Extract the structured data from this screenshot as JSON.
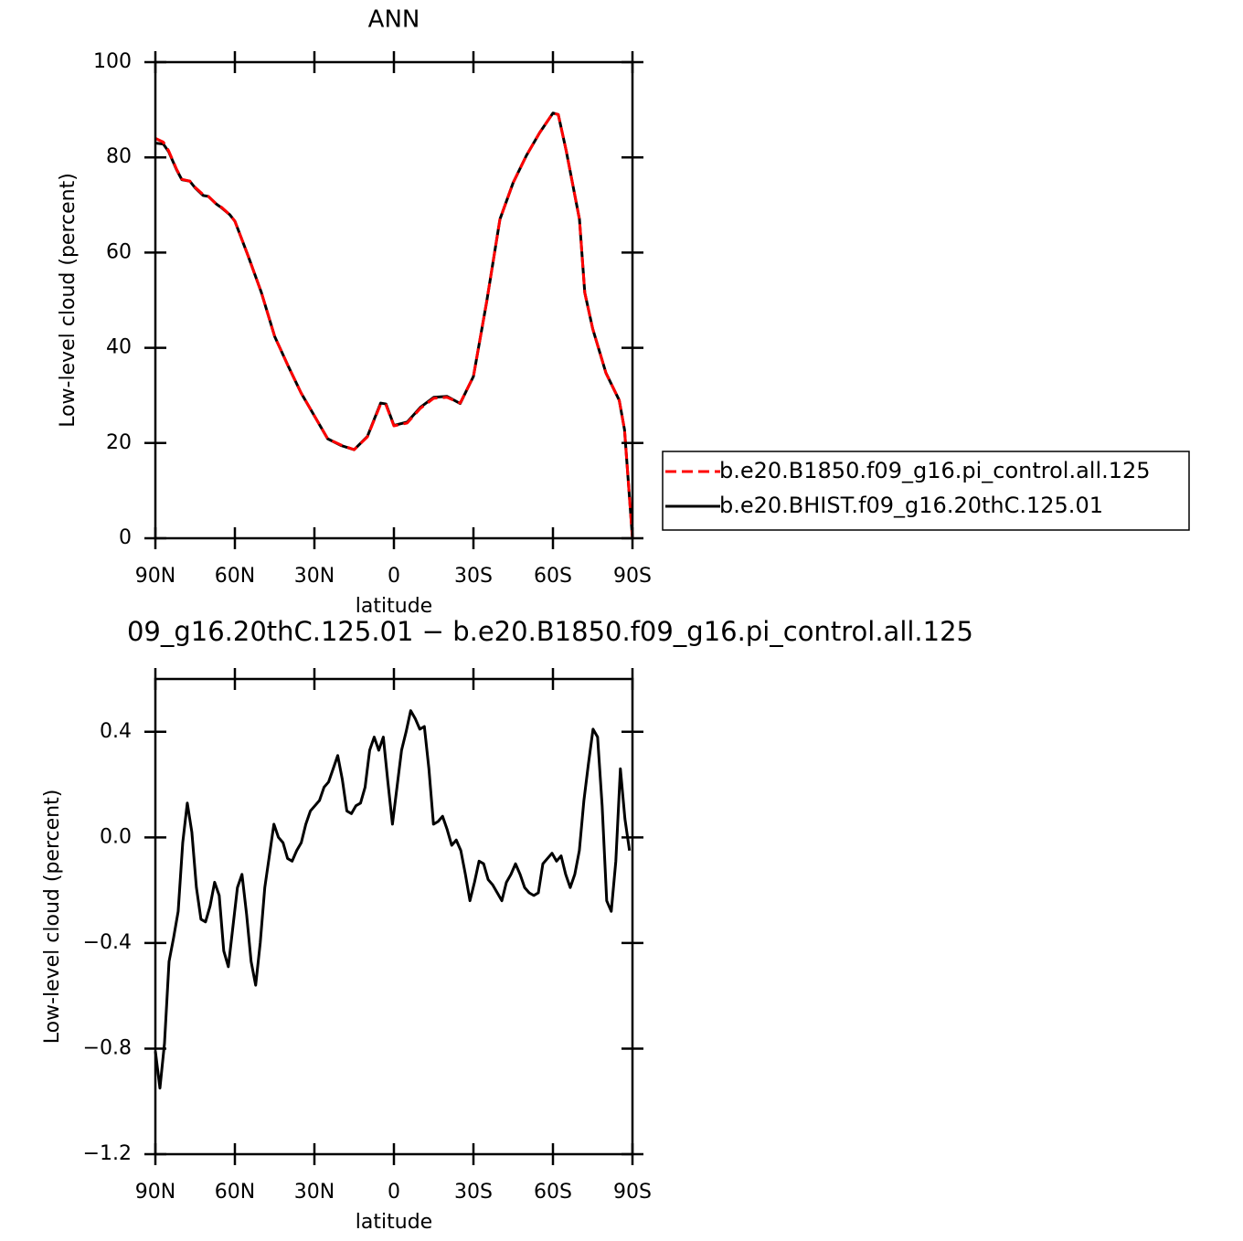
{
  "chart_data": [
    {
      "type": "line",
      "title": "ANN",
      "xlabel": "latitude",
      "ylabel": "Low-level cloud (percent)",
      "x": [
        90,
        87,
        85,
        82,
        80,
        77,
        75,
        72,
        70,
        67,
        65,
        62,
        60,
        55,
        50,
        45,
        40,
        35,
        30,
        25,
        20,
        15,
        10,
        5,
        3,
        0,
        -5,
        -10,
        -15,
        -20,
        -25,
        -30,
        -35,
        -40,
        -45,
        -50,
        -55,
        -60,
        -62,
        -65,
        -70,
        -72,
        -75,
        -80,
        -85,
        -87,
        -90
      ],
      "series": [
        {
          "name": "b.e20.B1850.f09_g16.pi_control.all.125",
          "color": "#ff0000",
          "dashed": true,
          "values": [
            84,
            83.2,
            81.4,
            77.5,
            75.4,
            75,
            73.7,
            72.2,
            71.8,
            70.2,
            69.5,
            68,
            66.6,
            59.3,
            51.6,
            42.4,
            36.3,
            30.5,
            25.7,
            20.9,
            19.6,
            18.6,
            21.3,
            28.2,
            28,
            23.6,
            24.2,
            27.3,
            29.4,
            29.6,
            28.4,
            34,
            49.7,
            67,
            74.7,
            80.4,
            85.2,
            89.3,
            89,
            81.4,
            67,
            51.6,
            44,
            34.7,
            29,
            22.8,
            0
          ]
        },
        {
          "name": "b.e20.BHIST.f09_g16.20thC.125.01",
          "color": "#000000",
          "dashed": false,
          "values": [
            83,
            82.8,
            81.2,
            77.4,
            75.3,
            75,
            73.6,
            72,
            71.8,
            70.2,
            69.4,
            68,
            66.6,
            59.3,
            51.6,
            42.4,
            36.3,
            30.5,
            25.7,
            20.9,
            19.5,
            18.6,
            21.4,
            28.4,
            28.2,
            23.7,
            24.4,
            27.5,
            29.6,
            29.8,
            28.3,
            34,
            49.7,
            67,
            74.7,
            80.4,
            85.2,
            89.3,
            89,
            81.4,
            67,
            51.6,
            44,
            34.7,
            29,
            22.8,
            0
          ]
        }
      ],
      "xlim": [
        90,
        -90
      ],
      "xticks": [
        {
          "value": 90,
          "label": "90N"
        },
        {
          "value": 60,
          "label": "60N"
        },
        {
          "value": 30,
          "label": "30N"
        },
        0,
        {
          "value": -30,
          "label": "30S"
        },
        {
          "value": -60,
          "label": "60S"
        },
        {
          "value": -90,
          "label": "90S"
        }
      ],
      "ylim": [
        0,
        100
      ],
      "yticks": [
        0,
        20,
        40,
        60,
        80,
        100
      ],
      "legend": "right"
    },
    {
      "type": "line",
      "title": "09_g16.20thC.125.01 − b.e20.B1850.f09_g16.pi_control.all.125",
      "xlabel": "latitude",
      "ylabel": "Low-level cloud (percent)",
      "x": [
        90,
        88.28,
        86.56,
        84.84,
        83.12,
        81.4,
        79.68,
        77.96,
        76.24,
        74.52,
        72.8,
        71.08,
        69.36,
        67.64,
        65.92,
        64.2,
        62.48,
        60.76,
        59.04,
        57.32,
        55.6,
        53.88,
        52.16,
        50.44,
        48.72,
        47,
        45.28,
        43.56,
        41.84,
        40.12,
        38.4,
        36.68,
        34.96,
        33.24,
        31.52,
        29.8,
        28.08,
        26.36,
        24.64,
        22.92,
        21.2,
        19.48,
        17.76,
        16.04,
        14.32,
        12.6,
        10.88,
        9.16,
        7.44,
        5.72,
        4,
        2.28,
        0.56,
        -1.16,
        -2.88,
        -4.6,
        -6.32,
        -8.04,
        -9.76,
        -11.48,
        -13.2,
        -14.92,
        -16.64,
        -18.36,
        -20.08,
        -21.8,
        -23.52,
        -25.24,
        -26.96,
        -28.68,
        -30.4,
        -32.12,
        -33.84,
        -35.56,
        -37.28,
        -39,
        -40.72,
        -42.44,
        -44.16,
        -45.88,
        -47.6,
        -49.32,
        -51.04,
        -52.76,
        -54.48,
        -56.2,
        -57.92,
        -59.64,
        -61.36,
        -63.08,
        -64.8,
        -66.52,
        -68.24,
        -69.96,
        -71.68,
        -73.4,
        -75.12,
        -76.84,
        -78.56,
        -80.28,
        -82,
        -83.72,
        -85.44,
        -87.16,
        -88.88
      ],
      "series": [
        {
          "color": "#000000",
          "dashed": false,
          "values": [
            -0.81,
            -0.95,
            -0.78,
            -0.47,
            -0.38,
            -0.28,
            -0.02,
            0.13,
            0.02,
            -0.19,
            -0.31,
            -0.32,
            -0.26,
            -0.17,
            -0.22,
            -0.43,
            -0.49,
            -0.34,
            -0.19,
            -0.14,
            -0.29,
            -0.47,
            -0.56,
            -0.4,
            -0.19,
            -0.07,
            0.05,
            0,
            -0.02,
            -0.08,
            -0.09,
            -0.05,
            -0.02,
            0.05,
            0.1,
            0.12,
            0.14,
            0.19,
            0.21,
            0.26,
            0.31,
            0.22,
            0.1,
            0.09,
            0.12,
            0.13,
            0.19,
            0.33,
            0.38,
            0.33,
            0.38,
            0.21,
            0.05,
            0.19,
            0.33,
            0.4,
            0.48,
            0.45,
            0.41,
            0.42,
            0.26,
            0.05,
            0.06,
            0.08,
            0.03,
            -0.03,
            -0.01,
            -0.05,
            -0.14,
            -0.24,
            -0.17,
            -0.09,
            -0.1,
            -0.16,
            -0.18,
            -0.21,
            -0.24,
            -0.17,
            -0.14,
            -0.1,
            -0.14,
            -0.19,
            -0.21,
            -0.22,
            -0.21,
            -0.1,
            -0.08,
            -0.06,
            -0.09,
            -0.07,
            -0.14,
            -0.19,
            -0.14,
            -0.05,
            0.14,
            0.28,
            0.41,
            0.38,
            0.12,
            -0.24,
            -0.28,
            -0.09,
            0.26,
            0.07,
            -0.05
          ]
        }
      ],
      "xlim": [
        90,
        -90
      ],
      "xticks": [
        {
          "value": 90,
          "label": "90N"
        },
        {
          "value": 60,
          "label": "60N"
        },
        {
          "value": 30,
          "label": "30N"
        },
        0,
        {
          "value": -30,
          "label": "30S"
        },
        {
          "value": -60,
          "label": "60S"
        },
        {
          "value": -90,
          "label": "90S"
        }
      ],
      "ylim": [
        -1.2,
        0.6
      ],
      "yticks": [
        {
          "value": -1.2,
          "label": "−1.2"
        },
        {
          "value": -0.8,
          "label": "−0.8"
        },
        {
          "value": -0.4,
          "label": "−0.4"
        },
        {
          "value": 0,
          "label": "0.0"
        },
        0.4
      ]
    }
  ]
}
